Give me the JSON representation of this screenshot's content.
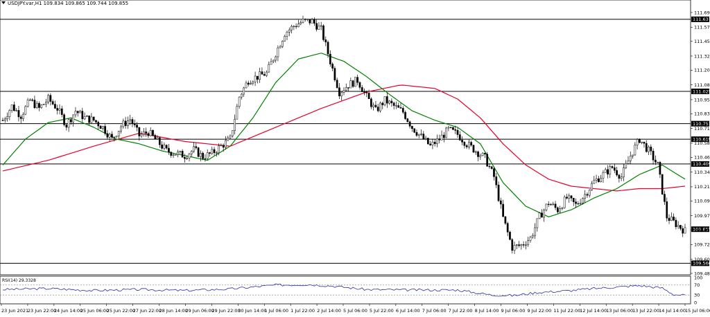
{
  "header": {
    "symbol_line": "USDJPY.var,H1  109.834 109.865 109.744 109.855",
    "rsi_label": "RSI(14) 29.3328"
  },
  "colors": {
    "up_down_candle": "#000000",
    "ma_fast": "#008000",
    "ma_slow": "#e8002a",
    "rsi_line": "#2a2aa8",
    "level_line": "#000000",
    "price_tag_bg": "#000000",
    "price_tag_text": "#ffffff"
  },
  "chart_data": {
    "type": "candlestick",
    "symbol": "USDJPY.var",
    "timeframe": "H1",
    "ohlc_last": {
      "open": 109.834,
      "high": 109.865,
      "low": 109.744,
      "close": 109.855
    },
    "y_range": [
      109.48,
      111.695
    ],
    "y_ticks": [
      "111.695",
      "111.570",
      "111.450",
      "111.325",
      "111.205",
      "111.080",
      "110.955",
      "110.835",
      "110.710",
      "110.585",
      "110.465",
      "110.340",
      "110.215",
      "110.095",
      "109.970",
      "109.850",
      "109.725",
      "109.600",
      "109.480"
    ],
    "horizontal_levels": [
      "111.637",
      "111.025",
      "110.751",
      "110.619",
      "110.409",
      "109.566"
    ],
    "current_price_tag": "109.855",
    "x_labels": [
      "23 Jun 2021",
      "23 Jun 22:00",
      "24 Jun 14:00",
      "25 Jun 06:00",
      "25 Jun 22:00",
      "27 Jun 22:00",
      "28 Jun 14:00",
      "29 Jun 06:00",
      "29 Jun 22:00",
      "30 Jun 14:00",
      "1 Jul 06:00",
      "1 Jul 22:00",
      "2 Jul 14:00",
      "5 Jul 06:00",
      "5 Jul 22:00",
      "6 Jul 14:00",
      "7 Jul 06:00",
      "7 Jul 22:00",
      "8 Jul 14:00",
      "9 Jul 06:00",
      "9 Jul 22:00",
      "11 Jul 22:00",
      "12 Jul 14:00",
      "13 Jul 06:00",
      "13 Jul 22:00",
      "14 Jul 14:00",
      "15 Jul 06:00"
    ],
    "close_path": [
      [
        0,
        110.78
      ],
      [
        4,
        110.9
      ],
      [
        8,
        110.82
      ],
      [
        12,
        110.95
      ],
      [
        16,
        110.88
      ],
      [
        20,
        110.96
      ],
      [
        24,
        110.88
      ],
      [
        28,
        110.74
      ],
      [
        32,
        110.86
      ],
      [
        36,
        110.8
      ],
      [
        40,
        110.78
      ],
      [
        44,
        110.72
      ],
      [
        48,
        110.62
      ],
      [
        52,
        110.73
      ],
      [
        56,
        110.79
      ],
      [
        60,
        110.65
      ],
      [
        64,
        110.68
      ],
      [
        68,
        110.6
      ],
      [
        72,
        110.52
      ],
      [
        76,
        110.5
      ],
      [
        80,
        110.48
      ],
      [
        84,
        110.53
      ],
      [
        88,
        110.47
      ],
      [
        92,
        110.5
      ],
      [
        96,
        110.56
      ],
      [
        100,
        110.62
      ],
      [
        104,
        110.98
      ],
      [
        108,
        111.12
      ],
      [
        112,
        111.15
      ],
      [
        116,
        111.18
      ],
      [
        120,
        111.35
      ],
      [
        124,
        111.52
      ],
      [
        128,
        111.58
      ],
      [
        132,
        111.62
      ],
      [
        136,
        111.62
      ],
      [
        140,
        111.55
      ],
      [
        144,
        111.28
      ],
      [
        148,
        111.02
      ],
      [
        152,
        111.08
      ],
      [
        156,
        111.12
      ],
      [
        160,
        110.98
      ],
      [
        164,
        110.86
      ],
      [
        168,
        110.95
      ],
      [
        172,
        110.9
      ],
      [
        176,
        110.85
      ],
      [
        180,
        110.72
      ],
      [
        184,
        110.64
      ],
      [
        188,
        110.56
      ],
      [
        192,
        110.62
      ],
      [
        196,
        110.7
      ],
      [
        200,
        110.66
      ],
      [
        204,
        110.58
      ],
      [
        208,
        110.52
      ],
      [
        212,
        110.46
      ],
      [
        216,
        110.3
      ],
      [
        220,
        109.95
      ],
      [
        224,
        109.7
      ],
      [
        228,
        109.72
      ],
      [
        232,
        109.78
      ],
      [
        236,
        109.96
      ],
      [
        240,
        110.08
      ],
      [
        244,
        110.02
      ],
      [
        248,
        110.12
      ],
      [
        252,
        110.06
      ],
      [
        256,
        110.15
      ],
      [
        260,
        110.26
      ],
      [
        264,
        110.32
      ],
      [
        268,
        110.38
      ],
      [
        272,
        110.3
      ],
      [
        276,
        110.48
      ],
      [
        280,
        110.62
      ],
      [
        284,
        110.52
      ],
      [
        288,
        110.4
      ],
      [
        292,
        109.96
      ],
      [
        296,
        109.9
      ],
      [
        300,
        109.84
      ]
    ],
    "ma_fast_path": [
      [
        0,
        110.4
      ],
      [
        10,
        110.62
      ],
      [
        20,
        110.76
      ],
      [
        30,
        110.8
      ],
      [
        40,
        110.72
      ],
      [
        50,
        110.62
      ],
      [
        60,
        110.58
      ],
      [
        70,
        110.52
      ],
      [
        80,
        110.48
      ],
      [
        90,
        110.44
      ],
      [
        100,
        110.56
      ],
      [
        110,
        110.8
      ],
      [
        120,
        111.1
      ],
      [
        130,
        111.3
      ],
      [
        140,
        111.35
      ],
      [
        150,
        111.28
      ],
      [
        160,
        111.15
      ],
      [
        170,
        111.0
      ],
      [
        180,
        110.86
      ],
      [
        190,
        110.78
      ],
      [
        200,
        110.72
      ],
      [
        210,
        110.58
      ],
      [
        220,
        110.25
      ],
      [
        230,
        110.05
      ],
      [
        240,
        109.96
      ],
      [
        250,
        110.02
      ],
      [
        260,
        110.12
      ],
      [
        270,
        110.2
      ],
      [
        280,
        110.32
      ],
      [
        290,
        110.4
      ],
      [
        300,
        110.28
      ]
    ],
    "ma_slow_path": [
      [
        0,
        110.35
      ],
      [
        20,
        110.44
      ],
      [
        40,
        110.56
      ],
      [
        60,
        110.67
      ],
      [
        80,
        110.6
      ],
      [
        100,
        110.56
      ],
      [
        120,
        110.72
      ],
      [
        140,
        110.88
      ],
      [
        160,
        111.02
      ],
      [
        175,
        111.08
      ],
      [
        190,
        111.05
      ],
      [
        200,
        110.96
      ],
      [
        210,
        110.8
      ],
      [
        220,
        110.58
      ],
      [
        230,
        110.4
      ],
      [
        240,
        110.28
      ],
      [
        250,
        110.22
      ],
      [
        260,
        110.2
      ],
      [
        270,
        110.18
      ],
      [
        280,
        110.2
      ],
      [
        290,
        110.2
      ],
      [
        300,
        110.22
      ]
    ],
    "rsi": {
      "period": 14,
      "value": 29.3328,
      "levels": [
        70,
        30
      ],
      "y_ticks": [
        "100",
        "70",
        "30",
        "0"
      ],
      "path": [
        [
          0,
          52
        ],
        [
          20,
          56
        ],
        [
          40,
          48
        ],
        [
          60,
          52
        ],
        [
          80,
          48
        ],
        [
          100,
          54
        ],
        [
          120,
          70
        ],
        [
          135,
          72
        ],
        [
          145,
          66
        ],
        [
          160,
          52
        ],
        [
          180,
          50
        ],
        [
          200,
          50
        ],
        [
          215,
          30
        ],
        [
          225,
          28
        ],
        [
          235,
          40
        ],
        [
          250,
          48
        ],
        [
          260,
          56
        ],
        [
          270,
          62
        ],
        [
          280,
          68
        ],
        [
          290,
          58
        ],
        [
          295,
          32
        ],
        [
          300,
          29
        ]
      ]
    }
  }
}
